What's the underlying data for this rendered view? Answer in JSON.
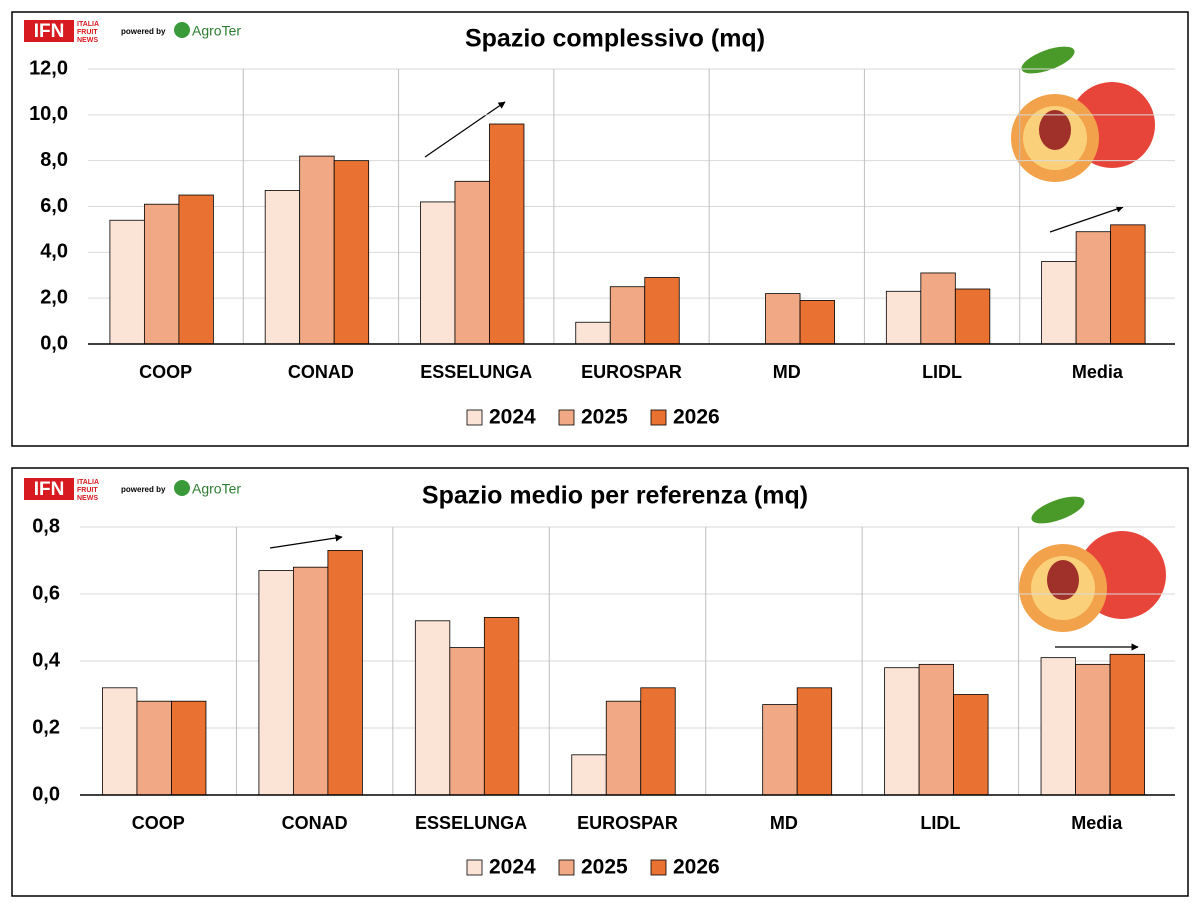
{
  "logo": {
    "ifn": "IFN",
    "lines": [
      "ITALIA",
      "FRUIT",
      "NEWS"
    ],
    "powered_by": "powered by",
    "agroter": "AgroTer"
  },
  "chart_data": [
    {
      "type": "bar",
      "title": "Spazio complessivo (mq)",
      "categories": [
        "COOP",
        "CONAD",
        "ESSELUNGA",
        "EUROSPAR",
        "MD",
        "LIDL",
        "Media"
      ],
      "series": [
        {
          "name": "2024",
          "color": "#fbe3d6",
          "values": [
            5.4,
            6.7,
            6.2,
            0.95,
            null,
            2.3,
            3.6
          ]
        },
        {
          "name": "2025",
          "color": "#f0a984",
          "values": [
            6.1,
            8.2,
            7.1,
            2.5,
            2.2,
            3.1,
            4.9
          ]
        },
        {
          "name": "2026",
          "color": "#e97132",
          "values": [
            6.5,
            8.0,
            9.6,
            2.9,
            1.9,
            2.4,
            5.2
          ]
        }
      ],
      "ylim": [
        0,
        12
      ],
      "yticks": [
        {
          "value": 0,
          "label": "0,0"
        },
        {
          "value": 2,
          "label": "2,0"
        },
        {
          "value": 4,
          "label": "4,0"
        },
        {
          "value": 6,
          "label": "6,0"
        },
        {
          "value": 8,
          "label": "8,0"
        },
        {
          "value": 10,
          "label": "10,0"
        },
        {
          "value": 12,
          "label": "12,0"
        }
      ],
      "grid": true,
      "legend": "bottom"
    },
    {
      "type": "bar",
      "title": "Spazio medio per referenza (mq)",
      "categories": [
        "COOP",
        "CONAD",
        "ESSELUNGA",
        "EUROSPAR",
        "MD",
        "LIDL",
        "Media"
      ],
      "series": [
        {
          "name": "2024",
          "color": "#fbe3d6",
          "values": [
            0.32,
            0.67,
            0.52,
            0.12,
            null,
            0.38,
            0.41
          ]
        },
        {
          "name": "2025",
          "color": "#f0a984",
          "values": [
            0.28,
            0.68,
            0.44,
            0.28,
            0.27,
            0.39,
            0.39
          ]
        },
        {
          "name": "2026",
          "color": "#e97132",
          "values": [
            0.28,
            0.73,
            0.53,
            0.32,
            0.32,
            0.3,
            0.42
          ]
        }
      ],
      "ylim": [
        0,
        0.8
      ],
      "yticks": [
        {
          "value": 0,
          "label": "0,0"
        },
        {
          "value": 0.2,
          "label": "0,2"
        },
        {
          "value": 0.4,
          "label": "0,4"
        },
        {
          "value": 0.6,
          "label": "0,6"
        },
        {
          "value": 0.8,
          "label": "0,8"
        }
      ],
      "grid": true,
      "legend": "bottom"
    }
  ]
}
